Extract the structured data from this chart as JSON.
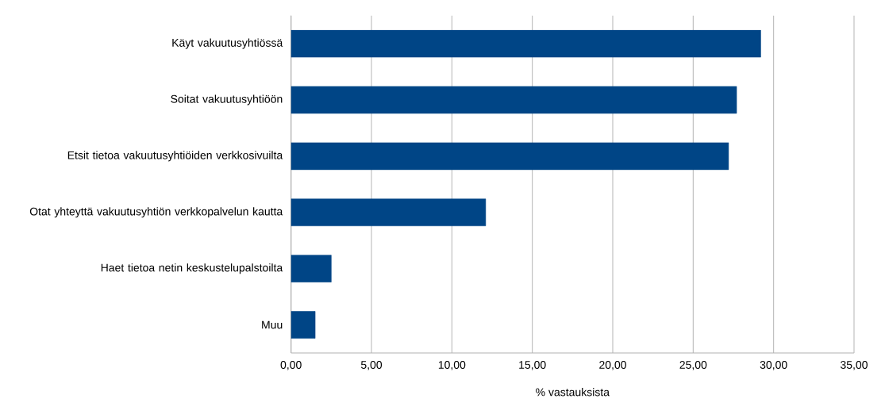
{
  "chart_data": {
    "type": "bar",
    "orientation": "horizontal",
    "xlabel": "% vastauksista",
    "categories": [
      "Käyt vakuutusyhtiössä",
      "Soitat vakuutusyhtiöön",
      "Etsit tietoa vakuutusyhtiöiden verkkosivuilta",
      "Otat yhteyttä vakuutusyhtiön verkkopalvelun kautta",
      "Haet tietoa netin keskustelupalstoilta",
      "Muu"
    ],
    "values": [
      29.2,
      27.7,
      27.2,
      12.1,
      2.5,
      1.5
    ],
    "color": "#004586",
    "xlim": [
      0,
      35
    ],
    "xticks": [
      {
        "value": 0,
        "label": "0,00"
      },
      {
        "value": 5,
        "label": "5,00"
      },
      {
        "value": 10,
        "label": "10,00"
      },
      {
        "value": 15,
        "label": "15,00"
      },
      {
        "value": 20,
        "label": "20,00"
      },
      {
        "value": 25,
        "label": "25,00"
      },
      {
        "value": 30,
        "label": "30,00"
      },
      {
        "value": 35,
        "label": "35,00"
      }
    ],
    "grid": "x"
  }
}
